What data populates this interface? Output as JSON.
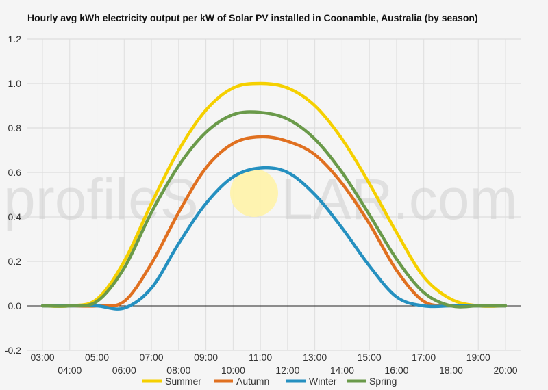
{
  "chart_data": {
    "type": "line",
    "title": "Hourly avg kWh electricity output per kW of Solar PV installed in Coonamble, Australia (by season)",
    "xlabel": "",
    "ylabel": "",
    "ylim": [
      -0.2,
      1.2
    ],
    "yticks": [
      "-0.2",
      "0.0",
      "0.2",
      "0.4",
      "0.6",
      "0.8",
      "1.0",
      "1.2"
    ],
    "ytick_values": [
      -0.2,
      0.0,
      0.2,
      0.4,
      0.6,
      0.8,
      1.0,
      1.2
    ],
    "xlim": [
      3,
      20
    ],
    "xticks": [
      "03:00",
      "04:00",
      "05:00",
      "06:00",
      "07:00",
      "08:00",
      "09:00",
      "10:00",
      "11:00",
      "12:00",
      "13:00",
      "14:00",
      "15:00",
      "16:00",
      "17:00",
      "18:00",
      "19:00",
      "20:00"
    ],
    "xtick_values": [
      3,
      4,
      5,
      6,
      7,
      8,
      9,
      10,
      11,
      12,
      13,
      14,
      15,
      16,
      17,
      18,
      19,
      20
    ],
    "grid": true,
    "legend_position": "bottom",
    "series": [
      {
        "name": "Summer",
        "color": "#f5d000",
        "x": [
          3,
          4,
          5,
          6,
          7,
          8,
          9,
          10,
          11,
          12,
          13,
          14,
          15,
          16,
          17,
          18,
          19,
          20
        ],
        "values": [
          0.0,
          0.0,
          0.03,
          0.2,
          0.46,
          0.7,
          0.88,
          0.98,
          1.0,
          0.98,
          0.9,
          0.75,
          0.55,
          0.33,
          0.13,
          0.03,
          0.0,
          0.0
        ]
      },
      {
        "name": "Autumn",
        "color": "#e07020",
        "x": [
          3,
          4,
          5,
          6,
          7,
          8,
          9,
          10,
          11,
          12,
          13,
          14,
          15,
          16,
          17,
          18,
          19,
          20
        ],
        "values": [
          0.0,
          0.0,
          0.0,
          0.02,
          0.19,
          0.42,
          0.62,
          0.73,
          0.76,
          0.74,
          0.68,
          0.55,
          0.37,
          0.16,
          0.02,
          0.0,
          0.0,
          0.0
        ]
      },
      {
        "name": "Winter",
        "color": "#2590c0",
        "x": [
          3,
          4,
          5,
          6,
          7,
          8,
          9,
          10,
          11,
          12,
          13,
          14,
          15,
          16,
          17,
          18,
          19,
          20
        ],
        "values": [
          0.0,
          0.0,
          0.0,
          -0.01,
          0.08,
          0.28,
          0.46,
          0.58,
          0.62,
          0.6,
          0.5,
          0.35,
          0.18,
          0.04,
          0.0,
          0.0,
          0.0,
          0.0
        ]
      },
      {
        "name": "Spring",
        "color": "#6a9a4a",
        "x": [
          3,
          4,
          5,
          6,
          7,
          8,
          9,
          10,
          11,
          12,
          13,
          14,
          15,
          16,
          17,
          18,
          19,
          20
        ],
        "values": [
          0.0,
          0.0,
          0.02,
          0.17,
          0.42,
          0.63,
          0.78,
          0.86,
          0.87,
          0.84,
          0.75,
          0.6,
          0.41,
          0.21,
          0.06,
          0.0,
          0.0,
          0.0
        ]
      }
    ]
  },
  "watermark": {
    "text_left": "profileS",
    "text_right": "LAR.com",
    "sun_color": "#fff3a8"
  }
}
